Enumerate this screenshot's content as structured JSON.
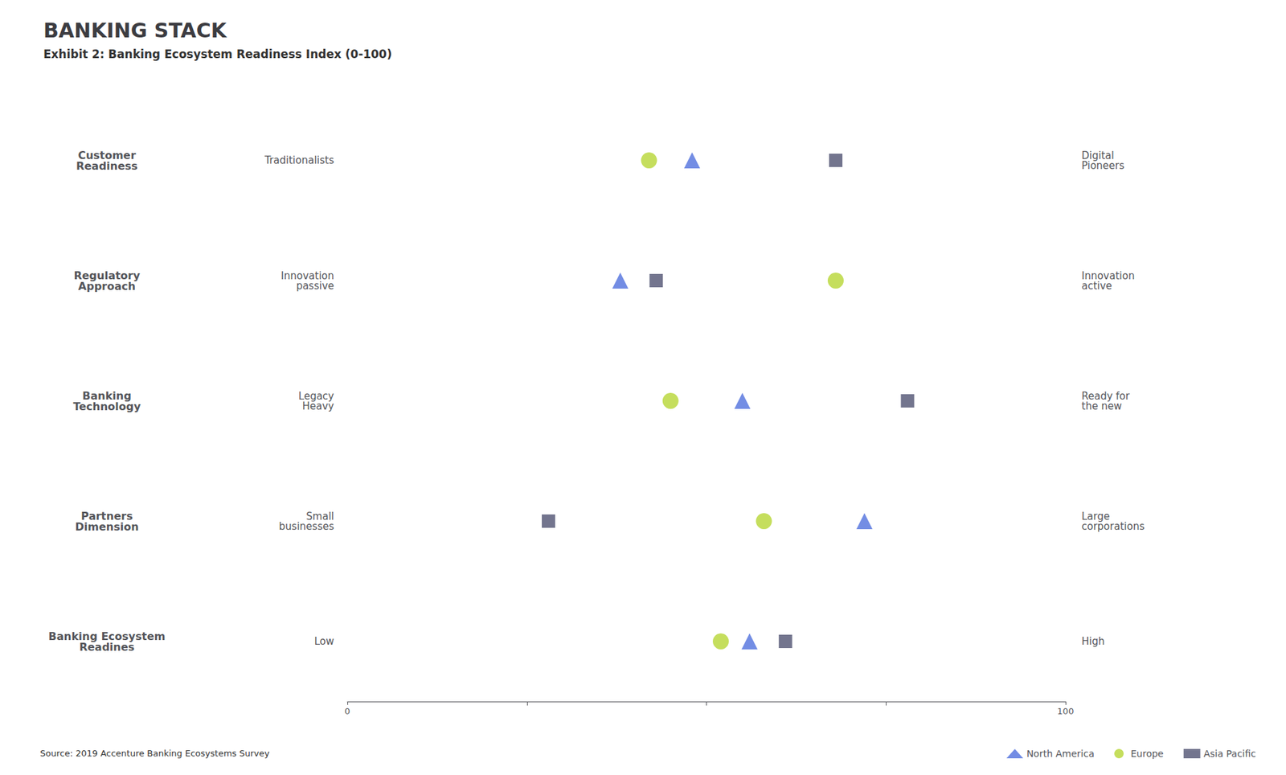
{
  "chart_data": {
    "type": "scatter",
    "title": "BANKING STACK",
    "subtitle": "Exhibit 2: Banking Ecosystem Readiness Index (0-100)",
    "annotations": [
      "Source: 2019 Accenture Banking Ecosystems Survey"
    ],
    "categories": [
      "Customer\nReadiness",
      "Regulatory\nApproach",
      "Banking\nTechnology",
      "Partners\nDimension",
      "Banking Ecosystem\nReadines"
    ],
    "left_labels": [
      "Traditionalists",
      "Innovation\npassive",
      "Legacy\nHeavy",
      "Small\nbusinesses",
      "Low"
    ],
    "right_labels": [
      "Digital\nPioneers",
      "Innovation\nactive",
      "Ready for\nthe new",
      "Large\ncorporations",
      "High"
    ],
    "series": [
      {
        "name": "North America",
        "marker": "triangle",
        "values": [
          48,
          38,
          55,
          72,
          56
        ]
      },
      {
        "name": "Europe",
        "marker": "circle",
        "values": [
          42,
          68,
          45,
          58,
          52
        ]
      },
      {
        "name": "Asia Pacific",
        "marker": "square",
        "values": [
          68,
          43,
          78,
          28,
          61
        ]
      }
    ],
    "xlim": [
      0,
      100
    ],
    "xticks": [
      0,
      100
    ],
    "grid": false,
    "legend": "bottom right"
  }
}
